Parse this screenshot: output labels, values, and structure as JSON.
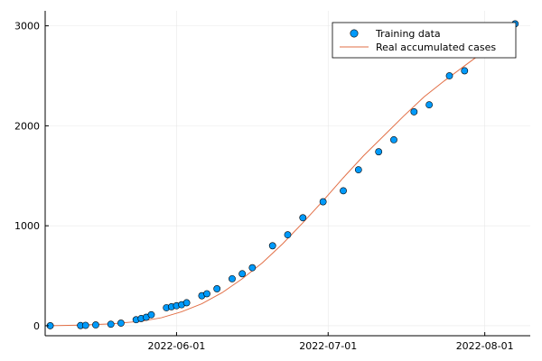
{
  "chart_data": {
    "type": "scatter",
    "title": "",
    "xlabel": "",
    "ylabel": "",
    "x_axis_type": "date",
    "xlim": [
      "2022-05-06",
      "2022-08-10"
    ],
    "ylim": [
      -100,
      3150
    ],
    "x_ticks": [
      {
        "date": "2022-06-01",
        "label": "2022-06-01"
      },
      {
        "date": "2022-07-01",
        "label": "2022-07-01"
      },
      {
        "date": "2022-08-01",
        "label": "2022-08-01"
      }
    ],
    "y_ticks": [
      {
        "value": 0,
        "label": "0"
      },
      {
        "value": 1000,
        "label": "1000"
      },
      {
        "value": 2000,
        "label": "2000"
      },
      {
        "value": 3000,
        "label": "3000"
      }
    ],
    "grid": true,
    "legend_position": "top-right",
    "series": [
      {
        "name": "Training data",
        "kind": "scatter",
        "color": "#009AFA",
        "points": [
          {
            "x": "2022-05-07",
            "y": 0
          },
          {
            "x": "2022-05-13",
            "y": 2
          },
          {
            "x": "2022-05-14",
            "y": 4
          },
          {
            "x": "2022-05-16",
            "y": 8
          },
          {
            "x": "2022-05-19",
            "y": 15
          },
          {
            "x": "2022-05-21",
            "y": 26
          },
          {
            "x": "2022-05-24",
            "y": 60
          },
          {
            "x": "2022-05-25",
            "y": 72
          },
          {
            "x": "2022-05-26",
            "y": 85
          },
          {
            "x": "2022-05-27",
            "y": 110
          },
          {
            "x": "2022-05-30",
            "y": 180
          },
          {
            "x": "2022-05-31",
            "y": 190
          },
          {
            "x": "2022-06-01",
            "y": 200
          },
          {
            "x": "2022-06-02",
            "y": 210
          },
          {
            "x": "2022-06-03",
            "y": 230
          },
          {
            "x": "2022-06-06",
            "y": 300
          },
          {
            "x": "2022-06-07",
            "y": 320
          },
          {
            "x": "2022-06-09",
            "y": 370
          },
          {
            "x": "2022-06-12",
            "y": 470
          },
          {
            "x": "2022-06-14",
            "y": 520
          },
          {
            "x": "2022-06-16",
            "y": 580
          },
          {
            "x": "2022-06-20",
            "y": 800
          },
          {
            "x": "2022-06-23",
            "y": 910
          },
          {
            "x": "2022-06-26",
            "y": 1080
          },
          {
            "x": "2022-06-30",
            "y": 1240
          },
          {
            "x": "2022-07-04",
            "y": 1350
          },
          {
            "x": "2022-07-07",
            "y": 1560
          },
          {
            "x": "2022-07-11",
            "y": 1740
          },
          {
            "x": "2022-07-14",
            "y": 1860
          },
          {
            "x": "2022-07-18",
            "y": 2140
          },
          {
            "x": "2022-07-21",
            "y": 2210
          },
          {
            "x": "2022-07-25",
            "y": 2500
          },
          {
            "x": "2022-07-28",
            "y": 2550
          },
          {
            "x": "2022-08-07",
            "y": 3020
          }
        ]
      },
      {
        "name": "Real accumulated cases",
        "kind": "line",
        "color": "#E26F46",
        "points": [
          {
            "x": "2022-05-07",
            "y": 0
          },
          {
            "x": "2022-05-13",
            "y": 6
          },
          {
            "x": "2022-05-19",
            "y": 18
          },
          {
            "x": "2022-05-25",
            "y": 45
          },
          {
            "x": "2022-05-29",
            "y": 80
          },
          {
            "x": "2022-06-02",
            "y": 140
          },
          {
            "x": "2022-06-06",
            "y": 220
          },
          {
            "x": "2022-06-10",
            "y": 330
          },
          {
            "x": "2022-06-14",
            "y": 470
          },
          {
            "x": "2022-06-18",
            "y": 630
          },
          {
            "x": "2022-06-22",
            "y": 820
          },
          {
            "x": "2022-06-26",
            "y": 1030
          },
          {
            "x": "2022-06-30",
            "y": 1250
          },
          {
            "x": "2022-07-04",
            "y": 1480
          },
          {
            "x": "2022-07-08",
            "y": 1700
          },
          {
            "x": "2022-07-12",
            "y": 1900
          },
          {
            "x": "2022-07-16",
            "y": 2100
          },
          {
            "x": "2022-07-20",
            "y": 2290
          },
          {
            "x": "2022-07-24",
            "y": 2450
          },
          {
            "x": "2022-07-28",
            "y": 2600
          },
          {
            "x": "2022-08-01",
            "y": 2750
          },
          {
            "x": "2022-08-04",
            "y": 2860
          }
        ]
      }
    ]
  }
}
